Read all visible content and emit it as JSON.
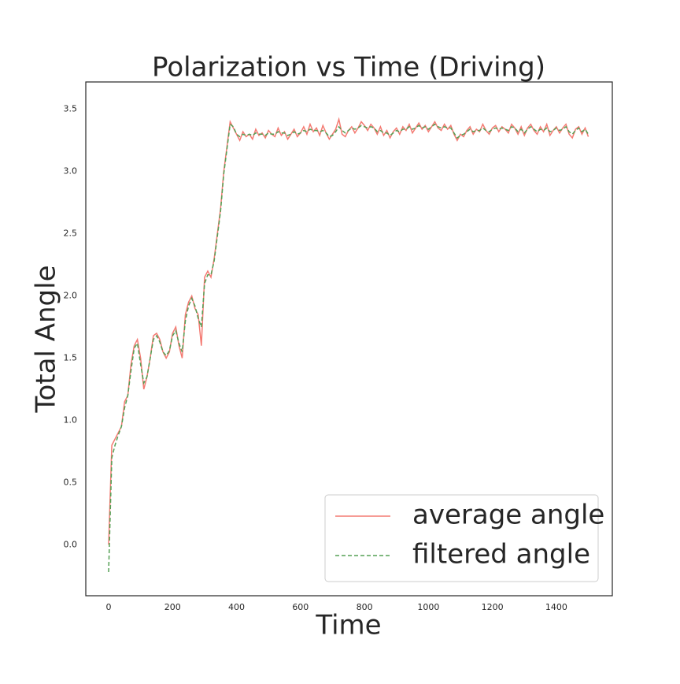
{
  "chart_data": {
    "type": "line",
    "title": "Polarization vs Time (Driving)",
    "xlabel": "Time",
    "ylabel": "Total Angle",
    "x": [
      0,
      10,
      20,
      30,
      40,
      50,
      60,
      70,
      80,
      90,
      100,
      110,
      120,
      130,
      140,
      150,
      160,
      170,
      180,
      190,
      200,
      210,
      220,
      230,
      240,
      250,
      260,
      270,
      280,
      290,
      300,
      310,
      320,
      330,
      340,
      350,
      360,
      370,
      380,
      390,
      400,
      410,
      420,
      430,
      440,
      450,
      460,
      470,
      480,
      490,
      500,
      510,
      520,
      530,
      540,
      550,
      560,
      570,
      580,
      590,
      600,
      610,
      620,
      630,
      640,
      650,
      660,
      670,
      680,
      690,
      700,
      710,
      720,
      730,
      740,
      750,
      760,
      770,
      780,
      790,
      800,
      810,
      820,
      830,
      840,
      850,
      860,
      870,
      880,
      890,
      900,
      910,
      920,
      930,
      940,
      950,
      960,
      970,
      980,
      990,
      1000,
      1010,
      1020,
      1030,
      1040,
      1050,
      1060,
      1070,
      1080,
      1090,
      1100,
      1110,
      1120,
      1130,
      1140,
      1150,
      1160,
      1170,
      1180,
      1190,
      1200,
      1210,
      1220,
      1230,
      1240,
      1250,
      1260,
      1270,
      1280,
      1290,
      1300,
      1310,
      1320,
      1330,
      1340,
      1350,
      1360,
      1370,
      1380,
      1390,
      1400,
      1410,
      1420,
      1430,
      1440,
      1450,
      1460,
      1470,
      1480,
      1490,
      1500
    ],
    "series": [
      {
        "name": "average angle",
        "color": "#f47a72",
        "dash": false,
        "values": [
          0,
          0.8,
          0.85,
          0.9,
          0.95,
          1.15,
          1.2,
          1.45,
          1.6,
          1.65,
          1.5,
          1.25,
          1.35,
          1.5,
          1.68,
          1.7,
          1.65,
          1.55,
          1.5,
          1.55,
          1.7,
          1.75,
          1.6,
          1.5,
          1.85,
          1.95,
          2.0,
          1.9,
          1.85,
          1.6,
          2.15,
          2.2,
          2.15,
          2.3,
          2.5,
          2.7,
          3.0,
          3.2,
          3.4,
          3.35,
          3.3,
          3.25,
          3.32,
          3.28,
          3.3,
          3.26,
          3.34,
          3.29,
          3.31,
          3.27,
          3.33,
          3.3,
          3.28,
          3.35,
          3.29,
          3.32,
          3.26,
          3.3,
          3.34,
          3.28,
          3.31,
          3.36,
          3.3,
          3.38,
          3.32,
          3.35,
          3.29,
          3.37,
          3.31,
          3.26,
          3.3,
          3.34,
          3.42,
          3.3,
          3.28,
          3.33,
          3.36,
          3.31,
          3.35,
          3.4,
          3.37,
          3.33,
          3.38,
          3.35,
          3.3,
          3.36,
          3.29,
          3.33,
          3.27,
          3.32,
          3.35,
          3.3,
          3.36,
          3.33,
          3.38,
          3.31,
          3.35,
          3.39,
          3.34,
          3.37,
          3.32,
          3.36,
          3.4,
          3.35,
          3.33,
          3.38,
          3.34,
          3.37,
          3.3,
          3.25,
          3.3,
          3.28,
          3.33,
          3.36,
          3.3,
          3.34,
          3.32,
          3.38,
          3.33,
          3.3,
          3.35,
          3.37,
          3.32,
          3.36,
          3.34,
          3.31,
          3.38,
          3.35,
          3.3,
          3.36,
          3.29,
          3.35,
          3.38,
          3.33,
          3.3,
          3.36,
          3.32,
          3.38,
          3.29,
          3.33,
          3.36,
          3.31,
          3.35,
          3.38,
          3.3,
          3.27,
          3.34,
          3.36,
          3.3,
          3.35,
          3.28
        ]
      },
      {
        "name": "filtered angle",
        "color": "#55a055",
        "dash": true,
        "values": [
          -0.22,
          0.7,
          0.8,
          0.88,
          0.95,
          1.1,
          1.2,
          1.4,
          1.58,
          1.62,
          1.45,
          1.3,
          1.35,
          1.5,
          1.65,
          1.68,
          1.63,
          1.55,
          1.52,
          1.56,
          1.68,
          1.72,
          1.62,
          1.55,
          1.8,
          1.92,
          1.98,
          1.92,
          1.82,
          1.75,
          2.1,
          2.17,
          2.17,
          2.28,
          2.48,
          2.68,
          2.98,
          3.18,
          3.38,
          3.36,
          3.3,
          3.28,
          3.3,
          3.29,
          3.3,
          3.29,
          3.31,
          3.3,
          3.3,
          3.29,
          3.31,
          3.3,
          3.3,
          3.32,
          3.31,
          3.31,
          3.29,
          3.3,
          3.32,
          3.3,
          3.31,
          3.33,
          3.32,
          3.34,
          3.33,
          3.33,
          3.32,
          3.33,
          3.31,
          3.28,
          3.29,
          3.32,
          3.36,
          3.33,
          3.31,
          3.33,
          3.35,
          3.34,
          3.35,
          3.37,
          3.36,
          3.35,
          3.36,
          3.35,
          3.32,
          3.33,
          3.31,
          3.31,
          3.29,
          3.31,
          3.33,
          3.32,
          3.34,
          3.34,
          3.36,
          3.34,
          3.35,
          3.37,
          3.35,
          3.36,
          3.34,
          3.36,
          3.38,
          3.36,
          3.35,
          3.36,
          3.35,
          3.35,
          3.31,
          3.27,
          3.29,
          3.3,
          3.32,
          3.34,
          3.32,
          3.33,
          3.33,
          3.35,
          3.33,
          3.32,
          3.34,
          3.35,
          3.34,
          3.35,
          3.34,
          3.33,
          3.36,
          3.35,
          3.32,
          3.34,
          3.31,
          3.34,
          3.36,
          3.34,
          3.32,
          3.34,
          3.33,
          3.35,
          3.32,
          3.33,
          3.35,
          3.33,
          3.34,
          3.36,
          3.32,
          3.3,
          3.33,
          3.35,
          3.32,
          3.34,
          3.3
        ]
      }
    ],
    "xlim": [
      -71.4,
      1575
    ],
    "ylim": [
      -0.41,
      3.72
    ],
    "xticks": [
      0,
      200,
      400,
      600,
      800,
      1000,
      1200,
      1400
    ],
    "yticks": [
      {
        "value": 0,
        "label": "0.0"
      },
      0.5,
      {
        "value": 1,
        "label": "1.0"
      },
      1.5,
      {
        "value": 2,
        "label": "2.0"
      },
      2.5,
      {
        "value": 3,
        "label": "3.0"
      },
      3.5
    ],
    "grid": false,
    "legend": "lower right"
  }
}
